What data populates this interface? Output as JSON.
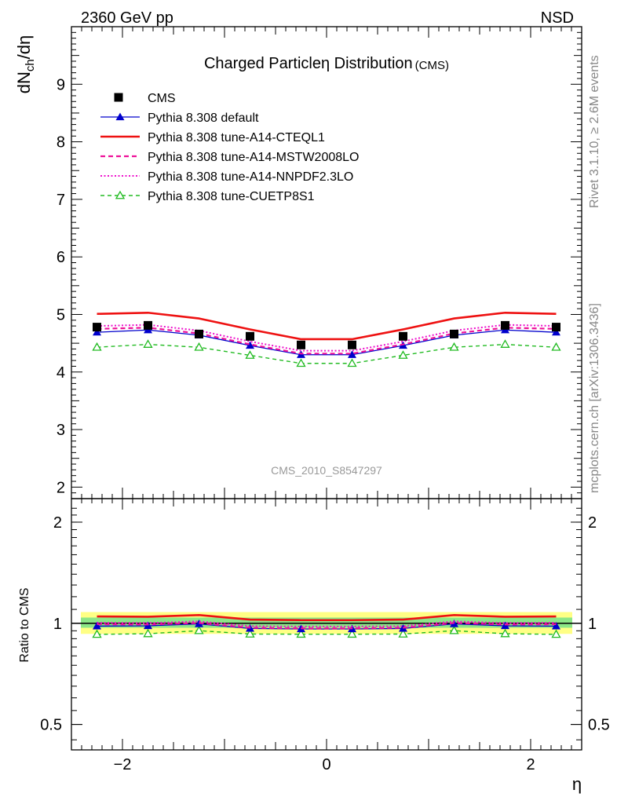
{
  "header": {
    "left": "2360 GeV pp",
    "right": "NSD"
  },
  "side_labels": {
    "rivet": "Rivet 3.1.10, ≥ 2.6M events",
    "mcplots": "mcplots.cern.ch [arXiv:1306.3436]"
  },
  "watermark": "CMS_2010_S8547297",
  "chart_data": [
    {
      "type": "line",
      "title": "Charged Particleη Distribution",
      "title_suffix": "(CMS)",
      "ylabel": "dN_ch/dη",
      "xlim": [
        -2.5,
        2.5
      ],
      "ylim": [
        1.8,
        10.0
      ],
      "yticks": [
        2,
        3,
        4,
        5,
        6,
        7,
        8,
        9
      ],
      "x": [
        -2.25,
        -1.75,
        -1.25,
        -0.75,
        -0.25,
        0.25,
        0.75,
        1.25,
        1.75,
        2.25
      ],
      "legend_position": "top-left",
      "series": [
        {
          "name": "CMS",
          "style": "data",
          "color": "#000000",
          "values": [
            4.78,
            4.81,
            4.66,
            4.62,
            4.47,
            4.47,
            4.62,
            4.66,
            4.81,
            4.78
          ]
        },
        {
          "name": "Pythia 8.308 default",
          "style": "solid-triangle",
          "color": "#0000cc",
          "values": [
            4.69,
            4.73,
            4.64,
            4.46,
            4.3,
            4.3,
            4.46,
            4.64,
            4.73,
            4.69
          ]
        },
        {
          "name": "Pythia 8.308 tune-A14-CTEQL1",
          "style": "solid-thick",
          "color": "#ee1111",
          "values": [
            5.01,
            5.03,
            4.93,
            4.74,
            4.57,
            4.57,
            4.74,
            4.93,
            5.03,
            5.01
          ]
        },
        {
          "name": "Pythia 8.308 tune-A14-MSTW2008LO",
          "style": "dashed",
          "color": "#ee1199",
          "values": [
            4.75,
            4.77,
            4.67,
            4.48,
            4.32,
            4.32,
            4.48,
            4.67,
            4.77,
            4.75
          ]
        },
        {
          "name": "Pythia 8.308 tune-A14-NNPDF2.3LO",
          "style": "dotted",
          "color": "#ee11cc",
          "values": [
            4.8,
            4.82,
            4.72,
            4.53,
            4.37,
            4.37,
            4.53,
            4.72,
            4.82,
            4.8
          ]
        },
        {
          "name": "Pythia 8.308 tune-CUETP8S1",
          "style": "dashed-open-triangle",
          "color": "#22bb22",
          "values": [
            4.43,
            4.48,
            4.43,
            4.29,
            4.15,
            4.15,
            4.29,
            4.43,
            4.48,
            4.43
          ]
        }
      ]
    },
    {
      "type": "line",
      "ylabel": "Ratio to CMS",
      "xlabel": "η",
      "xlim": [
        -2.5,
        2.5
      ],
      "ylim": [
        0.42,
        2.35
      ],
      "log_y": true,
      "yticks": [
        0.5,
        1,
        2
      ],
      "xticks": [
        -2,
        0,
        2
      ],
      "band_yellow": [
        0.93,
        1.08
      ],
      "band_green": [
        0.97,
        1.04
      ],
      "x": [
        -2.25,
        -1.75,
        -1.25,
        -0.75,
        -0.25,
        0.25,
        0.75,
        1.25,
        1.75,
        2.25
      ],
      "series": [
        {
          "name": "Pythia 8.308 default",
          "values": [
            0.981,
            0.983,
            0.996,
            0.965,
            0.962,
            0.962,
            0.965,
            0.996,
            0.983,
            0.981
          ]
        },
        {
          "name": "Pythia 8.308 tune-A14-CTEQL1",
          "values": [
            1.048,
            1.046,
            1.058,
            1.026,
            1.022,
            1.022,
            1.026,
            1.058,
            1.046,
            1.048
          ]
        },
        {
          "name": "Pythia 8.308 tune-A14-MSTW2008LO",
          "values": [
            0.994,
            0.992,
            1.002,
            0.97,
            0.966,
            0.966,
            0.97,
            1.002,
            0.992,
            0.994
          ]
        },
        {
          "name": "Pythia 8.308 tune-A14-NNPDF2.3LO",
          "values": [
            1.004,
            1.002,
            1.013,
            0.981,
            0.978,
            0.978,
            0.981,
            1.013,
            1.002,
            1.004
          ]
        },
        {
          "name": "Pythia 8.308 tune-CUETP8S1",
          "values": [
            0.927,
            0.931,
            0.951,
            0.929,
            0.928,
            0.928,
            0.929,
            0.951,
            0.931,
            0.927
          ]
        }
      ]
    }
  ]
}
